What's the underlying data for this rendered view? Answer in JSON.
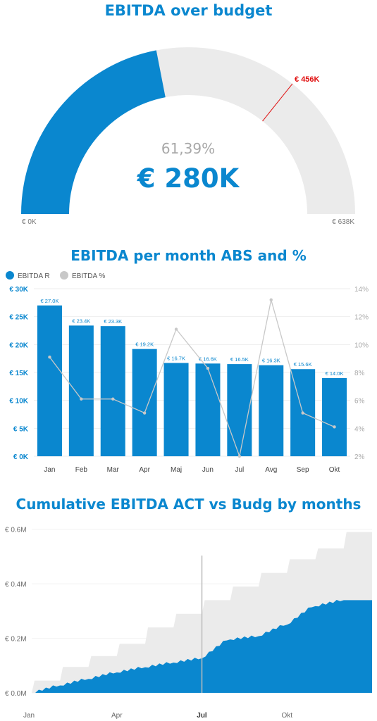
{
  "gauge": {
    "title": "EBITDA over budget",
    "percent_label": "61,39%",
    "value_label": "€ 280K",
    "min_label": "€ 0K",
    "max_label": "€ 638K",
    "target_label": "€ 456K",
    "chart_data": {
      "type": "gauge",
      "value": 280,
      "min": 0,
      "max": 638,
      "target": 456,
      "unit": "K €",
      "percent": 61.39
    },
    "colors": {
      "fill": "#0a87cf",
      "track": "#ebebeb",
      "target": "#e01010"
    }
  },
  "monthly": {
    "title": "EBITDA per month ABS and %",
    "legend": [
      "EBITDA R",
      "EBITDA %"
    ],
    "chart_data": {
      "type": "bar",
      "categories": [
        "Jan",
        "Feb",
        "Mar",
        "Apr",
        "Maj",
        "Jun",
        "Jul",
        "Avg",
        "Sep",
        "Okt"
      ],
      "series": [
        {
          "name": "EBITDA R",
          "values": [
            27.0,
            23.4,
            23.3,
            19.2,
            16.7,
            16.6,
            16.5,
            16.3,
            15.6,
            14.0
          ],
          "labels": [
            "€ 27.0K",
            "€ 23.4K",
            "€ 23.3K",
            "€ 19.2K",
            "€ 16.7K",
            "€ 16.6K",
            "€ 16.5K",
            "€ 16.3K",
            "€ 15.6K",
            "€ 14.0K"
          ]
        },
        {
          "name": "EBITDA %",
          "type": "line",
          "values": [
            9.1,
            6.1,
            6.1,
            5.1,
            11.1,
            8.3,
            2.0,
            13.2,
            5.1,
            4.1
          ]
        }
      ],
      "ylim": [
        0,
        30
      ],
      "yticks": [
        "€ 0K",
        "€ 5K",
        "€ 10K",
        "€ 15K",
        "€ 20K",
        "€ 25K",
        "€ 30K"
      ],
      "y2lim": [
        2,
        14
      ],
      "y2ticks": [
        "2%",
        "4%",
        "6%",
        "8%",
        "10%",
        "12%",
        "14%"
      ]
    },
    "colors": {
      "bar": "#0a87cf",
      "line": "#c8c8c8",
      "grid": "#eeeeee",
      "tick": "#0a87cf",
      "tick2": "#aaaaaa"
    }
  },
  "cumulative": {
    "title": "Cumulative EBITDA ACT vs Budg by months",
    "chart_data": {
      "type": "area",
      "x_ticks": [
        "Jan",
        "Apr",
        "Jul",
        "Okt"
      ],
      "x_tick_months": [
        0,
        3,
        6,
        9
      ],
      "marker_month": 6,
      "yticks": [
        "€ 0.0M",
        "€ 0.2M",
        "€ 0.4M",
        "€ 0.6M"
      ],
      "ylim": [
        0,
        0.62
      ],
      "series": [
        {
          "name": "Budg",
          "month_end_values": [
            0.045,
            0.095,
            0.135,
            0.18,
            0.24,
            0.29,
            0.34,
            0.39,
            0.44,
            0.49,
            0.53,
            0.59
          ]
        },
        {
          "name": "ACT",
          "month_end_values": [
            0.027,
            0.051,
            0.075,
            0.094,
            0.111,
            0.127,
            0.196,
            0.208,
            0.25,
            0.318,
            0.34
          ]
        }
      ],
      "act_last_month": 10
    },
    "colors": {
      "act": "#0a87cf",
      "budg": "#ebebeb",
      "marker": "#bcbcbc",
      "tick": "#6a6a6a"
    }
  }
}
